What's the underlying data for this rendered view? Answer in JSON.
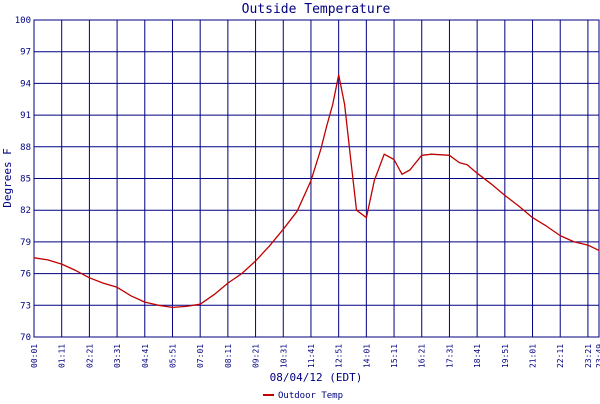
{
  "colors": {
    "background": "#ffffff",
    "plot_background": "#ffffff",
    "grid": "#000080",
    "axis_text": "#000080",
    "series": "#c00000"
  },
  "chart_data": {
    "type": "line",
    "title": "Outside Temperature",
    "xlabel": "08/04/12 (EDT)",
    "ylabel": "Degrees F",
    "ylim": [
      70,
      100
    ],
    "yticks": [
      70,
      73,
      76,
      79,
      82,
      85,
      88,
      91,
      94,
      97,
      100
    ],
    "grid": true,
    "legend_position": "bottom-center",
    "x_ticks": [
      "00:01",
      "01:11",
      "02:21",
      "03:31",
      "04:41",
      "05:51",
      "07:01",
      "08:11",
      "09:21",
      "10:31",
      "11:41",
      "12:51",
      "14:01",
      "15:11",
      "16:21",
      "17:31",
      "18:41",
      "19:51",
      "21:01",
      "22:11",
      "23:21",
      "23:49"
    ],
    "series": [
      {
        "name": "Outdoor Temp",
        "x": [
          "00:01",
          "00:36",
          "01:11",
          "01:46",
          "02:21",
          "02:56",
          "03:31",
          "04:06",
          "04:41",
          "05:16",
          "05:51",
          "06:26",
          "07:01",
          "07:36",
          "08:11",
          "08:46",
          "09:21",
          "09:56",
          "10:31",
          "11:06",
          "11:41",
          "12:06",
          "12:21",
          "12:36",
          "12:51",
          "13:06",
          "13:21",
          "13:36",
          "14:01",
          "14:21",
          "14:46",
          "15:11",
          "15:31",
          "15:51",
          "16:21",
          "16:46",
          "17:31",
          "17:56",
          "18:16",
          "18:41",
          "19:16",
          "19:51",
          "20:26",
          "21:01",
          "21:36",
          "22:11",
          "22:46",
          "23:21",
          "23:49"
        ],
        "y": [
          77.5,
          77.3,
          76.9,
          76.3,
          75.6,
          75.1,
          74.7,
          73.9,
          73.3,
          73.0,
          72.8,
          72.9,
          73.1,
          74.0,
          75.1,
          76.0,
          77.2,
          78.6,
          80.2,
          81.9,
          84.8,
          87.8,
          90.0,
          92.0,
          94.8,
          92.0,
          87.0,
          82.0,
          81.3,
          84.8,
          87.3,
          86.8,
          85.4,
          85.8,
          87.2,
          87.3,
          87.2,
          86.5,
          86.3,
          85.5,
          84.5,
          83.4,
          82.4,
          81.3,
          80.5,
          79.6,
          79.0,
          78.7,
          78.2
        ]
      }
    ]
  }
}
